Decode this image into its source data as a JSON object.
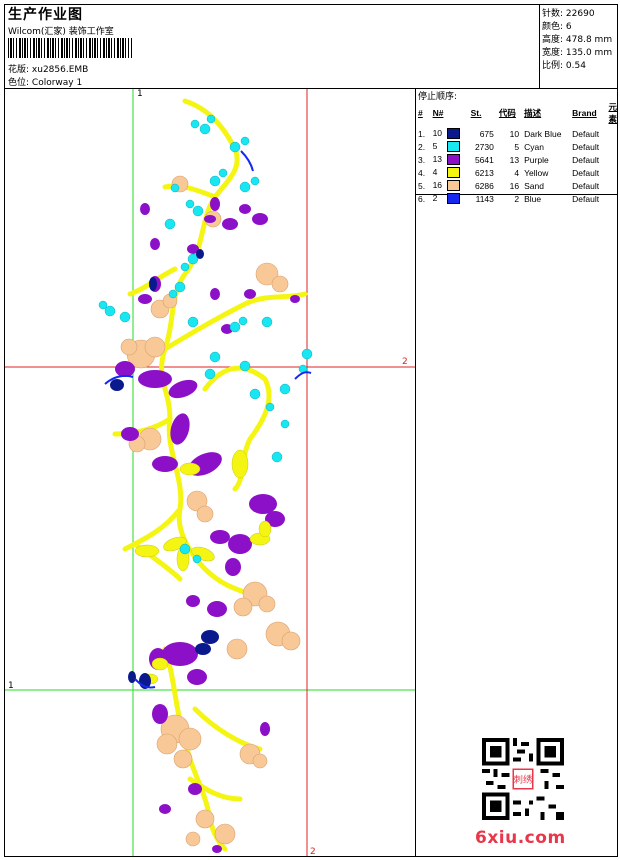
{
  "header": {
    "title": "生产作业图",
    "studio": "Wilcom(汇家) 装饰工作室",
    "design_label": "花版:",
    "design_value": "xu2856.EMB",
    "colorway_label": "色位:",
    "colorway_value": "Colorway 1"
  },
  "stats": {
    "stitches_label": "针数:",
    "stitches_value": "22690",
    "colors_label": "颜色:",
    "colors_value": "6",
    "height_label": "高度:",
    "height_value": "478.8 mm",
    "width_label": "宽度:",
    "width_value": "135.0 mm",
    "scale_label": "比例:",
    "scale_value": "0.54"
  },
  "stop_sequence": {
    "title": "停止顺序:",
    "headers": [
      "#",
      "N#",
      "St.",
      "代码",
      "描述",
      "Brand",
      "元素"
    ],
    "rows": [
      {
        "idx": "1.",
        "n": "10",
        "color": "#0a1a8c",
        "st": "675",
        "code": "10",
        "desc": "Dark Blue",
        "brand": "Default"
      },
      {
        "idx": "2.",
        "n": "5",
        "color": "#18e6f0",
        "st": "2730",
        "code": "5",
        "desc": "Cyan",
        "brand": "Default"
      },
      {
        "idx": "3.",
        "n": "13",
        "color": "#8c10c8",
        "st": "5641",
        "code": "13",
        "desc": "Purple",
        "brand": "Default"
      },
      {
        "idx": "4.",
        "n": "4",
        "color": "#f5f514",
        "st": "6213",
        "code": "4",
        "desc": "Yellow",
        "brand": "Default"
      },
      {
        "idx": "5.",
        "n": "16",
        "color": "#f8c896",
        "st": "6286",
        "code": "16",
        "desc": "Sand",
        "brand": "Default"
      },
      {
        "idx": "6.",
        "n": "2",
        "color": "#1428f0",
        "st": "1143",
        "code": "2",
        "desc": "Blue",
        "brand": "Default"
      }
    ]
  },
  "guides": {
    "green_top": "1",
    "green_left": "1",
    "red_right": "2",
    "red_bottom": "2"
  },
  "watermark": "6xiu.com",
  "qr_badge": "刺绣"
}
